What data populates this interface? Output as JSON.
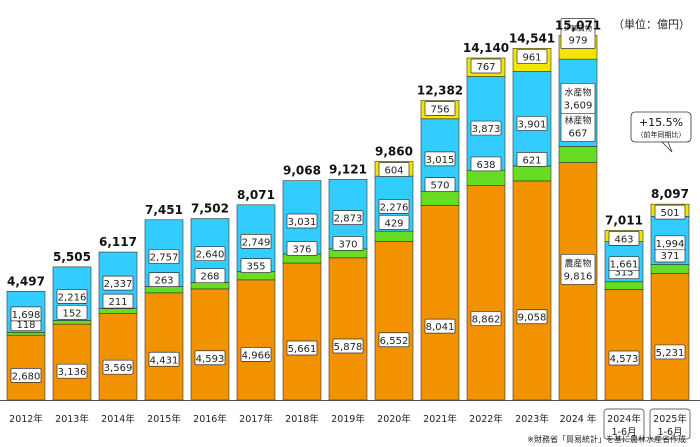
{
  "chart_data": {
    "type": "bar",
    "stacked": true,
    "unit_label": "（単位：億円）",
    "source_note": "※財務省「貿易統計」を基に農林水産省作成",
    "categories": [
      "2012年",
      "2013年",
      "2014年",
      "2015年",
      "2016年",
      "2017年",
      "2018年",
      "2019年",
      "2020年",
      "2021年",
      "2022年",
      "2023年",
      "2024 年",
      "2024年\n1-6月",
      "2025年\n1-6月"
    ],
    "totals": [
      "4,497",
      "5,505",
      "6,117",
      "7,451",
      "7,502",
      "8,071",
      "9,068",
      "9,121",
      "9,860",
      "12,382",
      "14,140",
      "14,541",
      "15,071",
      "7,011",
      "8,097"
    ],
    "series": [
      {
        "name": "農産物",
        "color": "#f39200",
        "values": [
          2680,
          3136,
          3569,
          4431,
          4593,
          4966,
          5661,
          5878,
          6552,
          8041,
          8862,
          9058,
          9816,
          4573,
          5231
        ]
      },
      {
        "name": "林産物",
        "color": "#66dd22",
        "values": [
          118,
          152,
          211,
          263,
          268,
          355,
          376,
          370,
          429,
          570,
          638,
          621,
          667,
          315,
          371
        ]
      },
      {
        "name": "水産物",
        "color": "#33ccff",
        "values": [
          1698,
          2216,
          2337,
          2757,
          2640,
          2749,
          3031,
          2873,
          2276,
          3015,
          3873,
          3901,
          3609,
          1661,
          1994
        ]
      },
      {
        "name": "少額貨物",
        "color": "#f2e600",
        "values": [
          0,
          0,
          0,
          0,
          0,
          0,
          0,
          0,
          604,
          756,
          767,
          961,
          979,
          463,
          501
        ]
      }
    ],
    "ylim": [
      0,
      16000
    ],
    "inline_labels_2024": {
      "agri": "農産物",
      "forest": "林産物",
      "fish": "水産物",
      "small": "少額貨物"
    },
    "growth_callout": {
      "value": "+15.5%",
      "note": "（前年同期比）"
    }
  }
}
